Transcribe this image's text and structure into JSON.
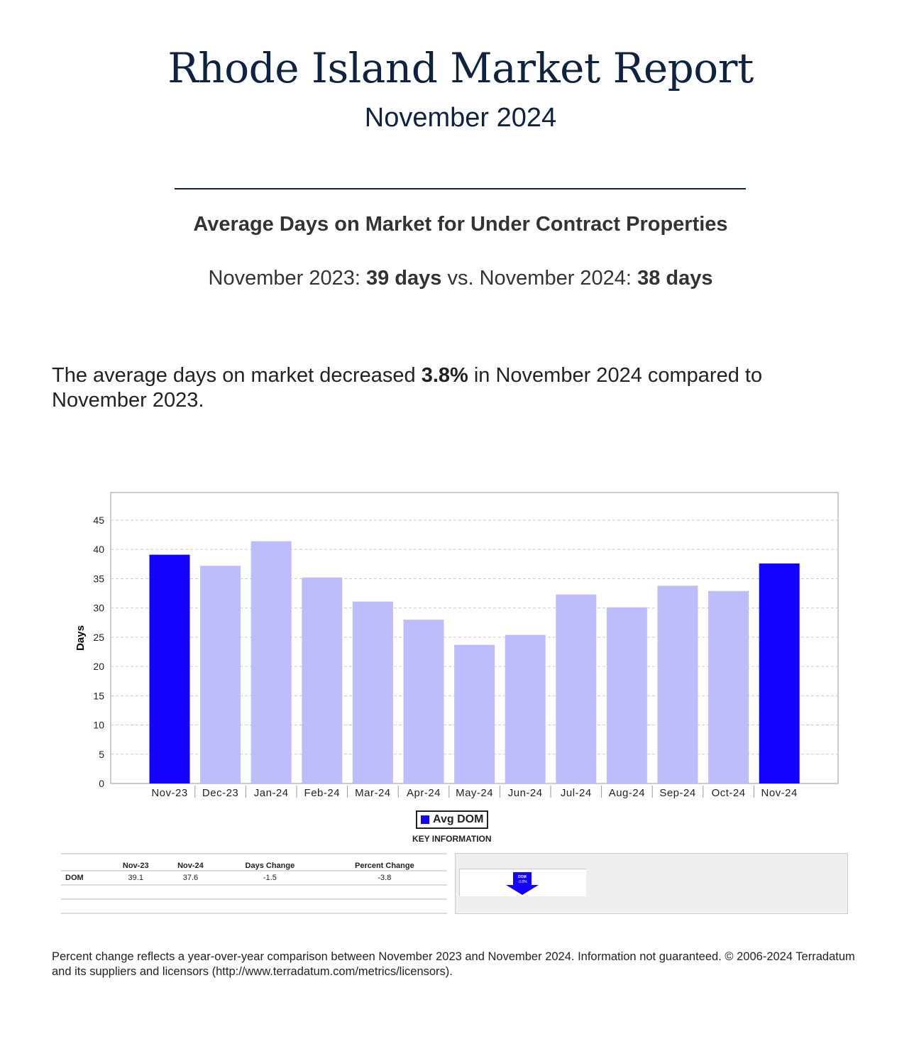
{
  "header": {
    "title": "Rhode Island Market Report",
    "subtitle": "November 2024"
  },
  "section": {
    "heading": "Average Days on Market for Under Contract Properties",
    "compare": {
      "label1": "November 2023:",
      "value1": "39 days",
      "vs": "vs.",
      "label2": "November 2024:",
      "value2": "38 days"
    },
    "summary": {
      "pre": "The average days on market decreased ",
      "pct": "3.8%",
      "post": " in November 2024 compared to November 2023."
    }
  },
  "chart_data": {
    "type": "bar",
    "ylabel": "Days",
    "xlabel": "",
    "ylim": [
      0,
      45
    ],
    "yticks": [
      "0",
      "5",
      "10",
      "15",
      "20",
      "25",
      "30",
      "35",
      "40",
      "45"
    ],
    "grid": true,
    "categories": [
      "Nov-23",
      "Dec-23",
      "Jan-24",
      "Feb-24",
      "Mar-24",
      "Apr-24",
      "May-24",
      "Jun-24",
      "Jul-24",
      "Aug-24",
      "Sep-24",
      "Oct-24",
      "Nov-24"
    ],
    "series": [
      {
        "name": "Avg DOM",
        "values": [
          39.1,
          37.2,
          41.4,
          35.2,
          31.1,
          28.0,
          23.7,
          25.4,
          32.3,
          30.1,
          33.8,
          32.9,
          37.6
        ]
      }
    ],
    "highlight": [
      0,
      12
    ],
    "colors": {
      "highlight": "#1400ff",
      "normal": "#bdbdfc"
    },
    "legend": {
      "label": "Avg DOM",
      "placement": "bottom",
      "caption": "KEY INFORMATION"
    }
  },
  "table": {
    "headers": [
      "",
      "Nov-23",
      "Nov-24",
      "Days Change",
      "Percent Change"
    ],
    "rows": [
      [
        "DOM",
        "39.1",
        "37.6",
        "-1.5",
        "-3.8"
      ]
    ]
  },
  "indicator": {
    "icon": "down-arrow-icon",
    "label": "DOM",
    "value": "-3.8%",
    "color": "#1400ff"
  },
  "footer": "Percent change reflects a year-over-year comparison between November 2023 and November 2024. Information not guaranteed. © 2006-2024 Terradatum and its suppliers and licensors (http://www.terradatum.com/metrics/licensors)."
}
